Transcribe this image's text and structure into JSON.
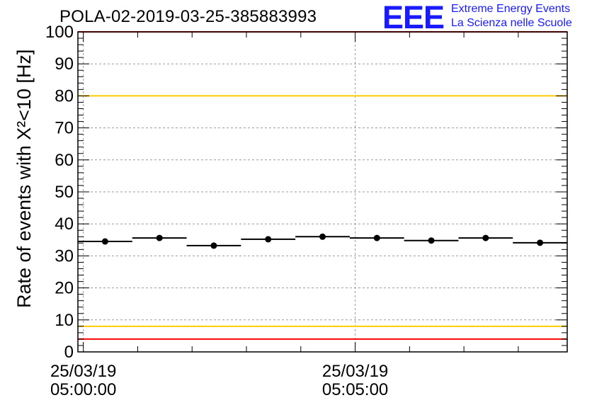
{
  "chart_data": {
    "type": "scatter",
    "title": "POLA-02-2019-03-25-385883993",
    "ylabel": "Rate of events with X²<10 [Hz]",
    "xlabel": "",
    "ylim": [
      0,
      100
    ],
    "yticks": [
      0,
      10,
      20,
      30,
      40,
      50,
      60,
      70,
      80,
      90,
      100
    ],
    "xlim_minutes": [
      -0.1,
      8.9
    ],
    "xtick_labels": [
      {
        "minute": 0,
        "date": "25/03/19",
        "time": "05:00:00"
      },
      {
        "minute": 5,
        "date": "25/03/19",
        "time": "05:05:00"
      }
    ],
    "grid": true,
    "series": [
      {
        "x_minutes": [
          0.4,
          1.4,
          2.4,
          3.4,
          4.4,
          5.4,
          6.4,
          7.4,
          8.4
        ],
        "bin_half_width_minutes": 0.5,
        "values": [
          34.5,
          35.6,
          33.2,
          35.2,
          36.0,
          35.6,
          34.8,
          35.6,
          34.1
        ],
        "color": "#000000"
      }
    ],
    "reference_lines": [
      {
        "y": 100,
        "color": "#ff0000"
      },
      {
        "y": 80,
        "color": "#ffcc00"
      },
      {
        "y": 8,
        "color": "#ffcc00"
      },
      {
        "y": 4,
        "color": "#ff0000"
      }
    ]
  },
  "logo": {
    "mark": "EEE",
    "line1": "Extreme Energy Events",
    "line2": "La Scienza nelle Scuole"
  }
}
